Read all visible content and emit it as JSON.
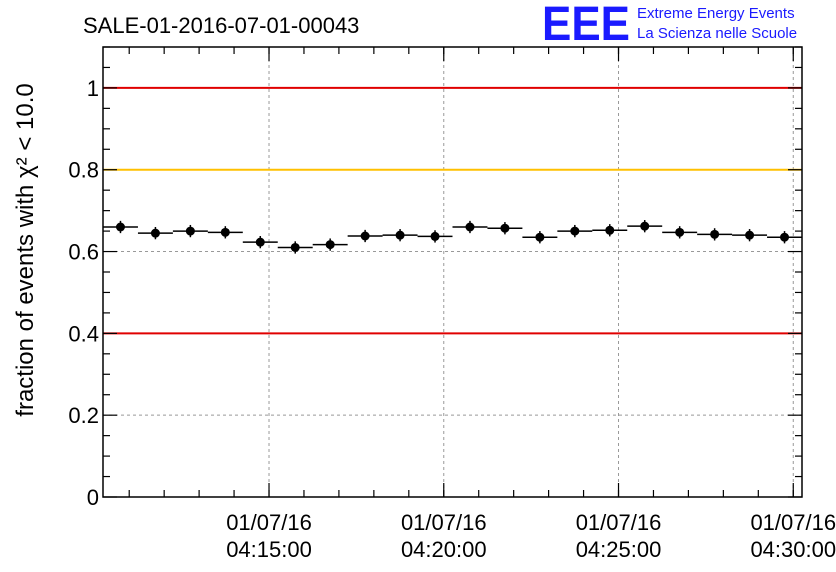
{
  "chart_data": {
    "type": "scatter",
    "title": "SALE-01-2016-07-01-00043",
    "ylabel": "fraction of events with χ² < 10.0",
    "ylim": [
      0,
      1.1
    ],
    "y_ticks": [
      0,
      0.2,
      0.4,
      0.6,
      0.8,
      1
    ],
    "y_tick_labels": [
      "0",
      "0.2",
      "0.4",
      "0.6",
      "0.8",
      "1"
    ],
    "x_range_minutes": [
      0,
      20
    ],
    "x_start": "01/07/16 04:10:15",
    "x_ticks": [
      {
        "date": "01/07/16",
        "time": "04:15:00",
        "min": 4.75
      },
      {
        "date": "01/07/16",
        "time": "04:20:00",
        "min": 9.75
      },
      {
        "date": "01/07/16",
        "time": "04:25:00",
        "min": 14.75
      },
      {
        "date": "01/07/16",
        "time": "04:30:00",
        "min": 19.75
      }
    ],
    "grid": true,
    "reference_lines": [
      {
        "y": 1.0,
        "color": "#e00000"
      },
      {
        "y": 0.8,
        "color": "#ffc000"
      },
      {
        "y": 0.4,
        "color": "#e00000"
      }
    ],
    "points": {
      "bin_minutes": 1.0,
      "y": [
        0.66,
        0.645,
        0.65,
        0.647,
        0.623,
        0.61,
        0.617,
        0.638,
        0.64,
        0.637,
        0.66,
        0.657,
        0.635,
        0.65,
        0.652,
        0.662,
        0.647,
        0.642,
        0.64,
        0.635
      ],
      "yerr": 0.015
    }
  },
  "logo": {
    "mark": "EEE",
    "line1": "Extreme Energy Events",
    "line2": "La Scienza nelle Scuole"
  }
}
